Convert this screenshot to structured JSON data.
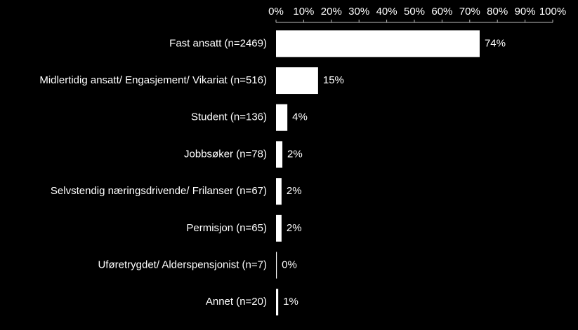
{
  "chart_data": {
    "type": "bar",
    "orientation": "horizontal",
    "categories": [
      "Fast ansatt (n=2469)",
      "Midlertidig ansatt/ Engasjement/ Vikariat (n=516)",
      "Student (n=136)",
      "Jobbsøker (n=78)",
      "Selvstendig næringsdrivende/ Frilanser (n=67)",
      "Permisjon (n=65)",
      "Uføretrygdet/ Alderspensjonist (n=7)",
      "Annet (n=20)"
    ],
    "values": [
      73.6,
      15.2,
      4.1,
      2.3,
      2.0,
      2.0,
      0.3,
      0.8
    ],
    "value_labels": [
      "74%",
      "15%",
      "4%",
      "2%",
      "2%",
      "2%",
      "0%",
      "1%"
    ],
    "color": "#ffffff",
    "xlim": [
      0,
      100
    ],
    "xticks": [
      {
        "value": 0,
        "label": "0%"
      },
      {
        "value": 10,
        "label": "10%"
      },
      {
        "value": 20,
        "label": "20%"
      },
      {
        "value": 30,
        "label": "30%"
      },
      {
        "value": 40,
        "label": "40%"
      },
      {
        "value": 50,
        "label": "50%"
      },
      {
        "value": 60,
        "label": "60%"
      },
      {
        "value": 70,
        "label": "70%"
      },
      {
        "value": 80,
        "label": "80%"
      },
      {
        "value": 90,
        "label": "90%"
      },
      {
        "value": 100,
        "label": "100%"
      }
    ]
  }
}
